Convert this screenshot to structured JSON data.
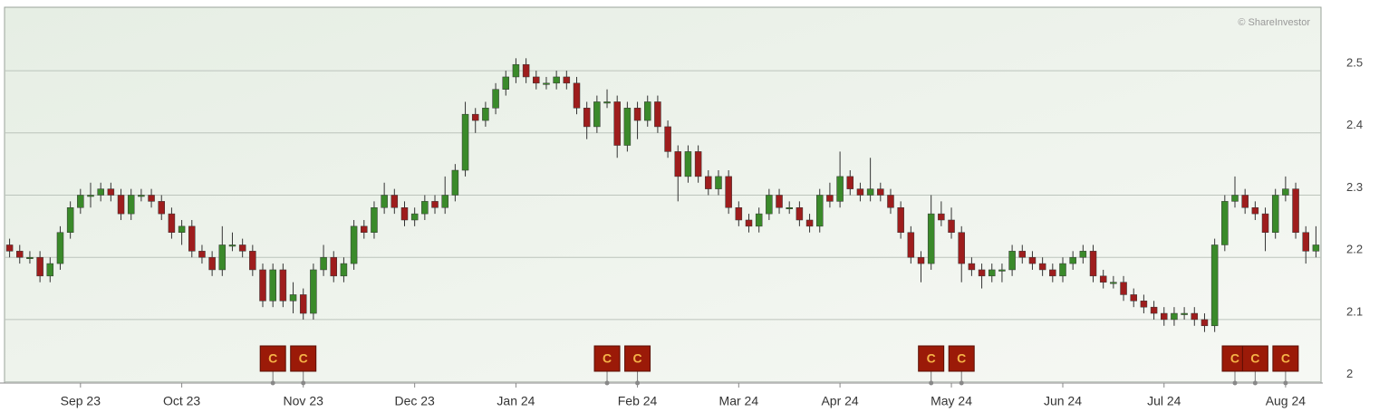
{
  "chart_data": {
    "type": "candlestick",
    "source": "© ShareInvestor",
    "up_color": "#3a8a2a",
    "down_color": "#9e1d1d",
    "grid": true,
    "ylim": [
      1.998,
      2.602
    ],
    "yticks": [
      2,
      2.1,
      2.2,
      2.3,
      2.4,
      2.5
    ],
    "categories": [
      null,
      null,
      null,
      null,
      null,
      null,
      null,
      "Sep 23",
      null,
      null,
      null,
      null,
      null,
      null,
      null,
      null,
      null,
      "Oct 23",
      null,
      null,
      null,
      null,
      null,
      null,
      null,
      null,
      null,
      null,
      null,
      "Nov 23",
      null,
      null,
      null,
      null,
      null,
      null,
      null,
      null,
      null,
      null,
      "Dec 23",
      null,
      null,
      null,
      null,
      null,
      null,
      null,
      null,
      null,
      "Jan 24",
      null,
      null,
      null,
      null,
      null,
      null,
      null,
      null,
      null,
      null,
      null,
      "Feb 24",
      null,
      null,
      null,
      null,
      null,
      null,
      null,
      null,
      null,
      "Mar 24",
      null,
      null,
      null,
      null,
      null,
      null,
      null,
      null,
      null,
      "Apr 24",
      null,
      null,
      null,
      null,
      null,
      null,
      null,
      null,
      null,
      null,
      "May 24",
      null,
      null,
      null,
      null,
      null,
      null,
      null,
      null,
      null,
      null,
      "Jun 24",
      null,
      null,
      null,
      null,
      null,
      null,
      null,
      null,
      null,
      "Jul 24",
      null,
      null,
      null,
      null,
      null,
      null,
      null,
      null,
      null,
      null,
      null,
      "Aug 24",
      null,
      null,
      null
    ],
    "events": [
      null,
      null,
      null,
      null,
      null,
      null,
      null,
      null,
      null,
      null,
      null,
      null,
      null,
      null,
      null,
      null,
      null,
      null,
      null,
      null,
      null,
      null,
      null,
      null,
      null,
      null,
      "C",
      null,
      null,
      "C",
      null,
      null,
      null,
      null,
      null,
      null,
      null,
      null,
      null,
      null,
      null,
      null,
      null,
      null,
      null,
      null,
      null,
      null,
      null,
      null,
      null,
      null,
      null,
      null,
      null,
      null,
      null,
      null,
      null,
      "C",
      null,
      null,
      "C",
      null,
      null,
      null,
      null,
      null,
      null,
      null,
      null,
      null,
      null,
      null,
      null,
      null,
      null,
      null,
      null,
      null,
      null,
      null,
      null,
      null,
      null,
      null,
      null,
      null,
      null,
      null,
      null,
      "C",
      null,
      null,
      "C",
      null,
      null,
      null,
      null,
      null,
      null,
      null,
      null,
      null,
      null,
      null,
      null,
      null,
      null,
      null,
      null,
      null,
      null,
      null,
      null,
      null,
      null,
      null,
      null,
      null,
      null,
      "C",
      null,
      "C",
      null,
      null,
      "C",
      null,
      null,
      null
    ],
    "candles": [
      [
        2.22,
        2.23,
        2.2,
        2.21
      ],
      [
        2.21,
        2.22,
        2.19,
        2.2
      ],
      [
        2.2,
        2.21,
        2.19,
        2.2
      ],
      [
        2.2,
        2.21,
        2.16,
        2.17
      ],
      [
        2.17,
        2.2,
        2.16,
        2.19
      ],
      [
        2.19,
        2.25,
        2.18,
        2.24
      ],
      [
        2.24,
        2.29,
        2.23,
        2.28
      ],
      [
        2.28,
        2.31,
        2.27,
        2.3
      ],
      [
        2.3,
        2.32,
        2.28,
        2.3
      ],
      [
        2.3,
        2.32,
        2.29,
        2.31
      ],
      [
        2.31,
        2.32,
        2.29,
        2.3
      ],
      [
        2.3,
        2.31,
        2.26,
        2.27
      ],
      [
        2.27,
        2.31,
        2.26,
        2.3
      ],
      [
        2.3,
        2.31,
        2.29,
        2.3
      ],
      [
        2.3,
        2.31,
        2.28,
        2.29
      ],
      [
        2.29,
        2.3,
        2.26,
        2.27
      ],
      [
        2.27,
        2.28,
        2.23,
        2.24
      ],
      [
        2.24,
        2.26,
        2.22,
        2.25
      ],
      [
        2.25,
        2.26,
        2.2,
        2.21
      ],
      [
        2.21,
        2.22,
        2.19,
        2.2
      ],
      [
        2.2,
        2.21,
        2.17,
        2.18
      ],
      [
        2.18,
        2.25,
        2.17,
        2.22
      ],
      [
        2.22,
        2.24,
        2.21,
        2.22
      ],
      [
        2.22,
        2.23,
        2.2,
        2.21
      ],
      [
        2.21,
        2.22,
        2.17,
        2.18
      ],
      [
        2.18,
        2.19,
        2.12,
        2.13
      ],
      [
        2.13,
        2.19,
        2.12,
        2.18
      ],
      [
        2.18,
        2.19,
        2.12,
        2.13
      ],
      [
        2.13,
        2.16,
        2.11,
        2.14
      ],
      [
        2.14,
        2.15,
        2.1,
        2.11
      ],
      [
        2.11,
        2.19,
        2.1,
        2.18
      ],
      [
        2.18,
        2.22,
        2.17,
        2.2
      ],
      [
        2.2,
        2.21,
        2.16,
        2.17
      ],
      [
        2.17,
        2.2,
        2.16,
        2.19
      ],
      [
        2.19,
        2.26,
        2.18,
        2.25
      ],
      [
        2.25,
        2.26,
        2.23,
        2.24
      ],
      [
        2.24,
        2.29,
        2.23,
        2.28
      ],
      [
        2.28,
        2.32,
        2.27,
        2.3
      ],
      [
        2.3,
        2.31,
        2.27,
        2.28
      ],
      [
        2.28,
        2.29,
        2.25,
        2.26
      ],
      [
        2.26,
        2.28,
        2.25,
        2.27
      ],
      [
        2.27,
        2.3,
        2.26,
        2.29
      ],
      [
        2.29,
        2.3,
        2.27,
        2.28
      ],
      [
        2.28,
        2.33,
        2.27,
        2.3
      ],
      [
        2.3,
        2.35,
        2.29,
        2.34
      ],
      [
        2.34,
        2.45,
        2.33,
        2.43
      ],
      [
        2.43,
        2.44,
        2.4,
        2.42
      ],
      [
        2.42,
        2.45,
        2.41,
        2.44
      ],
      [
        2.44,
        2.48,
        2.43,
        2.47
      ],
      [
        2.47,
        2.5,
        2.46,
        2.49
      ],
      [
        2.49,
        2.52,
        2.48,
        2.51
      ],
      [
        2.51,
        2.52,
        2.48,
        2.49
      ],
      [
        2.49,
        2.5,
        2.47,
        2.48
      ],
      [
        2.48,
        2.49,
        2.47,
        2.48
      ],
      [
        2.48,
        2.5,
        2.47,
        2.49
      ],
      [
        2.49,
        2.5,
        2.47,
        2.48
      ],
      [
        2.48,
        2.49,
        2.43,
        2.44
      ],
      [
        2.44,
        2.45,
        2.39,
        2.41
      ],
      [
        2.41,
        2.46,
        2.4,
        2.45
      ],
      [
        2.45,
        2.47,
        2.44,
        2.45
      ],
      [
        2.45,
        2.46,
        2.36,
        2.38
      ],
      [
        2.38,
        2.45,
        2.37,
        2.44
      ],
      [
        2.44,
        2.45,
        2.39,
        2.42
      ],
      [
        2.42,
        2.46,
        2.41,
        2.45
      ],
      [
        2.45,
        2.46,
        2.4,
        2.41
      ],
      [
        2.41,
        2.42,
        2.36,
        2.37
      ],
      [
        2.37,
        2.38,
        2.29,
        2.33
      ],
      [
        2.33,
        2.38,
        2.32,
        2.37
      ],
      [
        2.37,
        2.38,
        2.32,
        2.33
      ],
      [
        2.33,
        2.34,
        2.3,
        2.31
      ],
      [
        2.31,
        2.34,
        2.3,
        2.33
      ],
      [
        2.33,
        2.34,
        2.27,
        2.28
      ],
      [
        2.28,
        2.29,
        2.25,
        2.26
      ],
      [
        2.26,
        2.27,
        2.24,
        2.25
      ],
      [
        2.25,
        2.28,
        2.24,
        2.27
      ],
      [
        2.27,
        2.31,
        2.26,
        2.3
      ],
      [
        2.3,
        2.31,
        2.27,
        2.28
      ],
      [
        2.28,
        2.29,
        2.27,
        2.28
      ],
      [
        2.28,
        2.29,
        2.25,
        2.26
      ],
      [
        2.26,
        2.27,
        2.24,
        2.25
      ],
      [
        2.25,
        2.31,
        2.24,
        2.3
      ],
      [
        2.3,
        2.32,
        2.28,
        2.29
      ],
      [
        2.29,
        2.37,
        2.28,
        2.33
      ],
      [
        2.33,
        2.34,
        2.3,
        2.31
      ],
      [
        2.31,
        2.32,
        2.29,
        2.3
      ],
      [
        2.3,
        2.36,
        2.29,
        2.31
      ],
      [
        2.31,
        2.32,
        2.29,
        2.3
      ],
      [
        2.3,
        2.31,
        2.27,
        2.28
      ],
      [
        2.28,
        2.29,
        2.23,
        2.24
      ],
      [
        2.24,
        2.25,
        2.19,
        2.2
      ],
      [
        2.2,
        2.21,
        2.16,
        2.19
      ],
      [
        2.19,
        2.3,
        2.18,
        2.27
      ],
      [
        2.27,
        2.29,
        2.25,
        2.26
      ],
      [
        2.26,
        2.28,
        2.23,
        2.24
      ],
      [
        2.24,
        2.25,
        2.16,
        2.19
      ],
      [
        2.19,
        2.2,
        2.17,
        2.18
      ],
      [
        2.18,
        2.19,
        2.15,
        2.17
      ],
      [
        2.17,
        2.19,
        2.16,
        2.18
      ],
      [
        2.18,
        2.19,
        2.16,
        2.18
      ],
      [
        2.18,
        2.22,
        2.17,
        2.21
      ],
      [
        2.21,
        2.22,
        2.19,
        2.2
      ],
      [
        2.2,
        2.21,
        2.18,
        2.19
      ],
      [
        2.19,
        2.2,
        2.17,
        2.18
      ],
      [
        2.18,
        2.19,
        2.16,
        2.17
      ],
      [
        2.17,
        2.2,
        2.16,
        2.19
      ],
      [
        2.19,
        2.21,
        2.18,
        2.2
      ],
      [
        2.2,
        2.22,
        2.19,
        2.21
      ],
      [
        2.21,
        2.22,
        2.16,
        2.17
      ],
      [
        2.17,
        2.18,
        2.15,
        2.16
      ],
      [
        2.16,
        2.17,
        2.15,
        2.16
      ],
      [
        2.16,
        2.17,
        2.13,
        2.14
      ],
      [
        2.14,
        2.15,
        2.12,
        2.13
      ],
      [
        2.13,
        2.14,
        2.11,
        2.12
      ],
      [
        2.12,
        2.13,
        2.1,
        2.11
      ],
      [
        2.11,
        2.12,
        2.09,
        2.1
      ],
      [
        2.1,
        2.12,
        2.09,
        2.11
      ],
      [
        2.11,
        2.12,
        2.1,
        2.11
      ],
      [
        2.11,
        2.12,
        2.09,
        2.1
      ],
      [
        2.1,
        2.11,
        2.08,
        2.09
      ],
      [
        2.09,
        2.23,
        2.08,
        2.22
      ],
      [
        2.22,
        2.3,
        2.21,
        2.29
      ],
      [
        2.29,
        2.33,
        2.28,
        2.3
      ],
      [
        2.3,
        2.31,
        2.27,
        2.28
      ],
      [
        2.28,
        2.29,
        2.26,
        2.27
      ],
      [
        2.27,
        2.28,
        2.21,
        2.24
      ],
      [
        2.24,
        2.31,
        2.23,
        2.3
      ],
      [
        2.3,
        2.33,
        2.29,
        2.31
      ],
      [
        2.31,
        2.32,
        2.23,
        2.24
      ],
      [
        2.24,
        2.25,
        2.19,
        2.21
      ],
      [
        2.21,
        2.25,
        2.2,
        2.22
      ]
    ]
  }
}
